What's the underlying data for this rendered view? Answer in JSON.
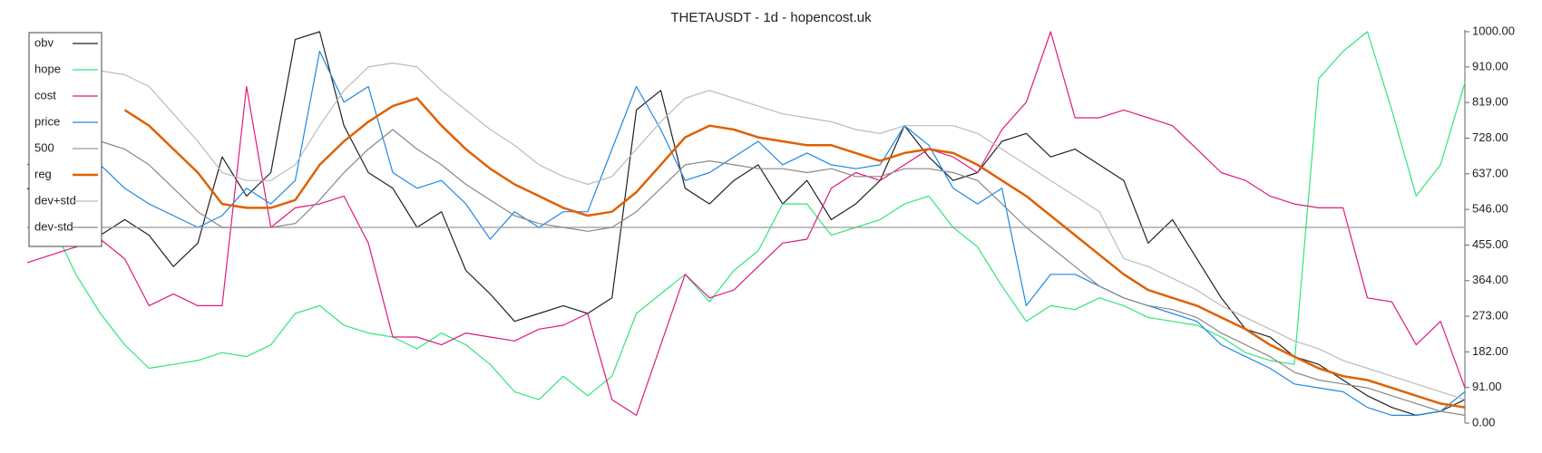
{
  "chart_data": {
    "type": "line",
    "title": "THETAUSDT - 1d - hopencost.uk",
    "ylim": [
      0,
      1000
    ],
    "yticks": [
      {
        "value": 0,
        "label": "0.00"
      },
      {
        "value": 91,
        "label": "91.00"
      },
      {
        "value": 182,
        "label": "182.00"
      },
      {
        "value": 273,
        "label": "273.00"
      },
      {
        "value": 364,
        "label": "364.00"
      },
      {
        "value": 455,
        "label": "455.00"
      },
      {
        "value": 546,
        "label": "546.00"
      },
      {
        "value": 637,
        "label": "637.00"
      },
      {
        "value": 728,
        "label": "728.00"
      },
      {
        "value": 819,
        "label": "819.00"
      },
      {
        "value": 910,
        "label": "910.00"
      },
      {
        "value": 1000,
        "label": "1000.00"
      }
    ],
    "legend": "upper-left",
    "series": [
      {
        "name": "obv",
        "color": "#222222",
        "width": 1.2,
        "values": [
          600,
          560,
          500,
          480,
          520,
          480,
          400,
          460,
          680,
          580,
          640,
          980,
          1000,
          760,
          640,
          600,
          500,
          540,
          390,
          330,
          260,
          280,
          300,
          280,
          320,
          800,
          850,
          600,
          560,
          620,
          660,
          560,
          620,
          520,
          560,
          620,
          760,
          680,
          620,
          640,
          720,
          740,
          680,
          700,
          660,
          620,
          460,
          520,
          420,
          320,
          240,
          220,
          170,
          150,
          110,
          70,
          40,
          20,
          30,
          60
        ]
      },
      {
        "name": "hope",
        "color": "#2ee67a",
        "width": 1.2,
        "values": [
          500,
          510,
          380,
          280,
          200,
          140,
          150,
          160,
          180,
          170,
          200,
          280,
          300,
          250,
          230,
          220,
          190,
          230,
          200,
          150,
          80,
          60,
          120,
          70,
          120,
          280,
          330,
          380,
          310,
          390,
          440,
          560,
          560,
          480,
          500,
          520,
          560,
          580,
          500,
          450,
          350,
          260,
          300,
          290,
          320,
          300,
          270,
          260,
          250,
          220,
          180,
          160,
          150,
          880,
          950,
          1000,
          800,
          580,
          660,
          870
        ]
      },
      {
        "name": "cost",
        "color": "#e0197d",
        "width": 1.2,
        "values": [
          410,
          430,
          450,
          470,
          420,
          300,
          330,
          300,
          300,
          860,
          500,
          550,
          560,
          580,
          460,
          220,
          220,
          200,
          230,
          220,
          210,
          240,
          250,
          280,
          60,
          20,
          200,
          380,
          320,
          340,
          400,
          460,
          470,
          600,
          640,
          620,
          660,
          700,
          680,
          640,
          750,
          820,
          1000,
          780,
          780,
          800,
          780,
          760,
          700,
          640,
          620,
          580,
          560,
          550,
          550,
          320,
          310,
          200,
          260,
          90
        ]
      },
      {
        "name": "price",
        "color": "#1e88e5",
        "width": 1.2,
        "values": [
          660,
          690,
          700,
          660,
          600,
          560,
          530,
          500,
          530,
          600,
          560,
          620,
          950,
          820,
          860,
          640,
          600,
          620,
          560,
          470,
          540,
          500,
          540,
          540,
          700,
          860,
          750,
          620,
          640,
          680,
          720,
          660,
          690,
          660,
          650,
          660,
          760,
          710,
          600,
          560,
          600,
          300,
          380,
          380,
          350,
          320,
          300,
          280,
          260,
          200,
          170,
          140,
          100,
          90,
          80,
          40,
          20,
          20,
          30,
          80
        ]
      },
      {
        "name": "500",
        "color": "#999999",
        "width": 1.2,
        "values": [
          500,
          500,
          500,
          500,
          500,
          500,
          500,
          500,
          500,
          500,
          500,
          500,
          500,
          500,
          500,
          500,
          500,
          500,
          500,
          500,
          500,
          500,
          500,
          500,
          500,
          500,
          500,
          500,
          500,
          500,
          500,
          500,
          500,
          500,
          500,
          500,
          500,
          500,
          500,
          500,
          500,
          500,
          500,
          500,
          500,
          500,
          500,
          500,
          500,
          500,
          500,
          500,
          500,
          500,
          500,
          500,
          500,
          500,
          500,
          500
        ]
      },
      {
        "name": "reg",
        "color": "#e06000",
        "width": 2.5,
        "values": [
          null,
          null,
          null,
          null,
          800,
          760,
          700,
          640,
          560,
          550,
          550,
          570,
          660,
          720,
          770,
          810,
          830,
          760,
          700,
          650,
          610,
          580,
          550,
          530,
          540,
          590,
          660,
          730,
          760,
          750,
          730,
          720,
          710,
          710,
          690,
          670,
          690,
          700,
          690,
          660,
          620,
          580,
          530,
          480,
          430,
          380,
          340,
          320,
          300,
          270,
          240,
          200,
          170,
          140,
          120,
          110,
          90,
          70,
          50,
          40
        ]
      },
      {
        "name": "dev+std",
        "color": "#bbbbbb",
        "width": 1.2,
        "values": [
          null,
          null,
          null,
          900,
          890,
          860,
          790,
          720,
          640,
          620,
          620,
          660,
          760,
          850,
          910,
          920,
          910,
          850,
          800,
          750,
          710,
          660,
          630,
          610,
          630,
          700,
          770,
          830,
          850,
          830,
          810,
          790,
          780,
          770,
          750,
          740,
          760,
          760,
          760,
          740,
          700,
          660,
          620,
          580,
          540,
          420,
          400,
          370,
          340,
          300,
          270,
          240,
          210,
          190,
          160,
          140,
          120,
          100,
          80,
          60
        ]
      },
      {
        "name": "dev-std",
        "color": "#888888",
        "width": 1.2,
        "values": [
          null,
          null,
          null,
          720,
          700,
          660,
          600,
          540,
          500,
          500,
          500,
          510,
          570,
          640,
          700,
          750,
          700,
          660,
          610,
          570,
          530,
          510,
          500,
          490,
          500,
          540,
          600,
          660,
          670,
          660,
          650,
          650,
          640,
          650,
          630,
          630,
          650,
          650,
          640,
          620,
          560,
          500,
          450,
          400,
          350,
          320,
          300,
          290,
          270,
          230,
          200,
          170,
          130,
          110,
          100,
          90,
          70,
          50,
          30,
          20
        ]
      }
    ]
  }
}
